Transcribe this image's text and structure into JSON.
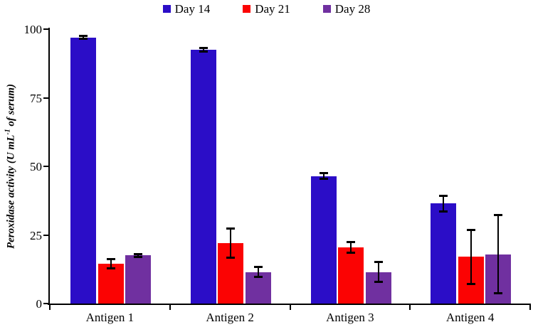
{
  "chart_data": {
    "type": "bar",
    "title": "",
    "categories": [
      "Antigen 1",
      "Antigen 2",
      "Antigen 3",
      "Antigen 4"
    ],
    "series": [
      {
        "name": "Day 14",
        "color": "#2B0DC7",
        "values": [
          97.0,
          92.5,
          46.5,
          36.5
        ],
        "errors": [
          0.7,
          0.7,
          1.2,
          3.0
        ]
      },
      {
        "name": "Day 21",
        "color": "#FB0303",
        "values": [
          14.5,
          22.0,
          20.5,
          17.0
        ],
        "errors": [
          1.7,
          5.5,
          2.0,
          10.0
        ]
      },
      {
        "name": "Day 28",
        "color": "#7030A0",
        "values": [
          17.5,
          11.5,
          11.5,
          18.0
        ],
        "errors": [
          0.6,
          2.0,
          3.8,
          14.5
        ]
      }
    ],
    "xlabel": "",
    "ylabel": "Peroxidase activity (U mL-1 of serum)",
    "ylabel_parts": {
      "prefix": "Peroxidase activity (U mL",
      "sup": "-1",
      "suffix": " of serum)"
    },
    "ylim": [
      0,
      100
    ],
    "yticks": [
      0,
      25,
      50,
      75,
      100
    ],
    "grid": false,
    "legend_position": "top-center",
    "error_bars": true,
    "axis_color": "#000000",
    "background_color": "#FFFFFF"
  }
}
